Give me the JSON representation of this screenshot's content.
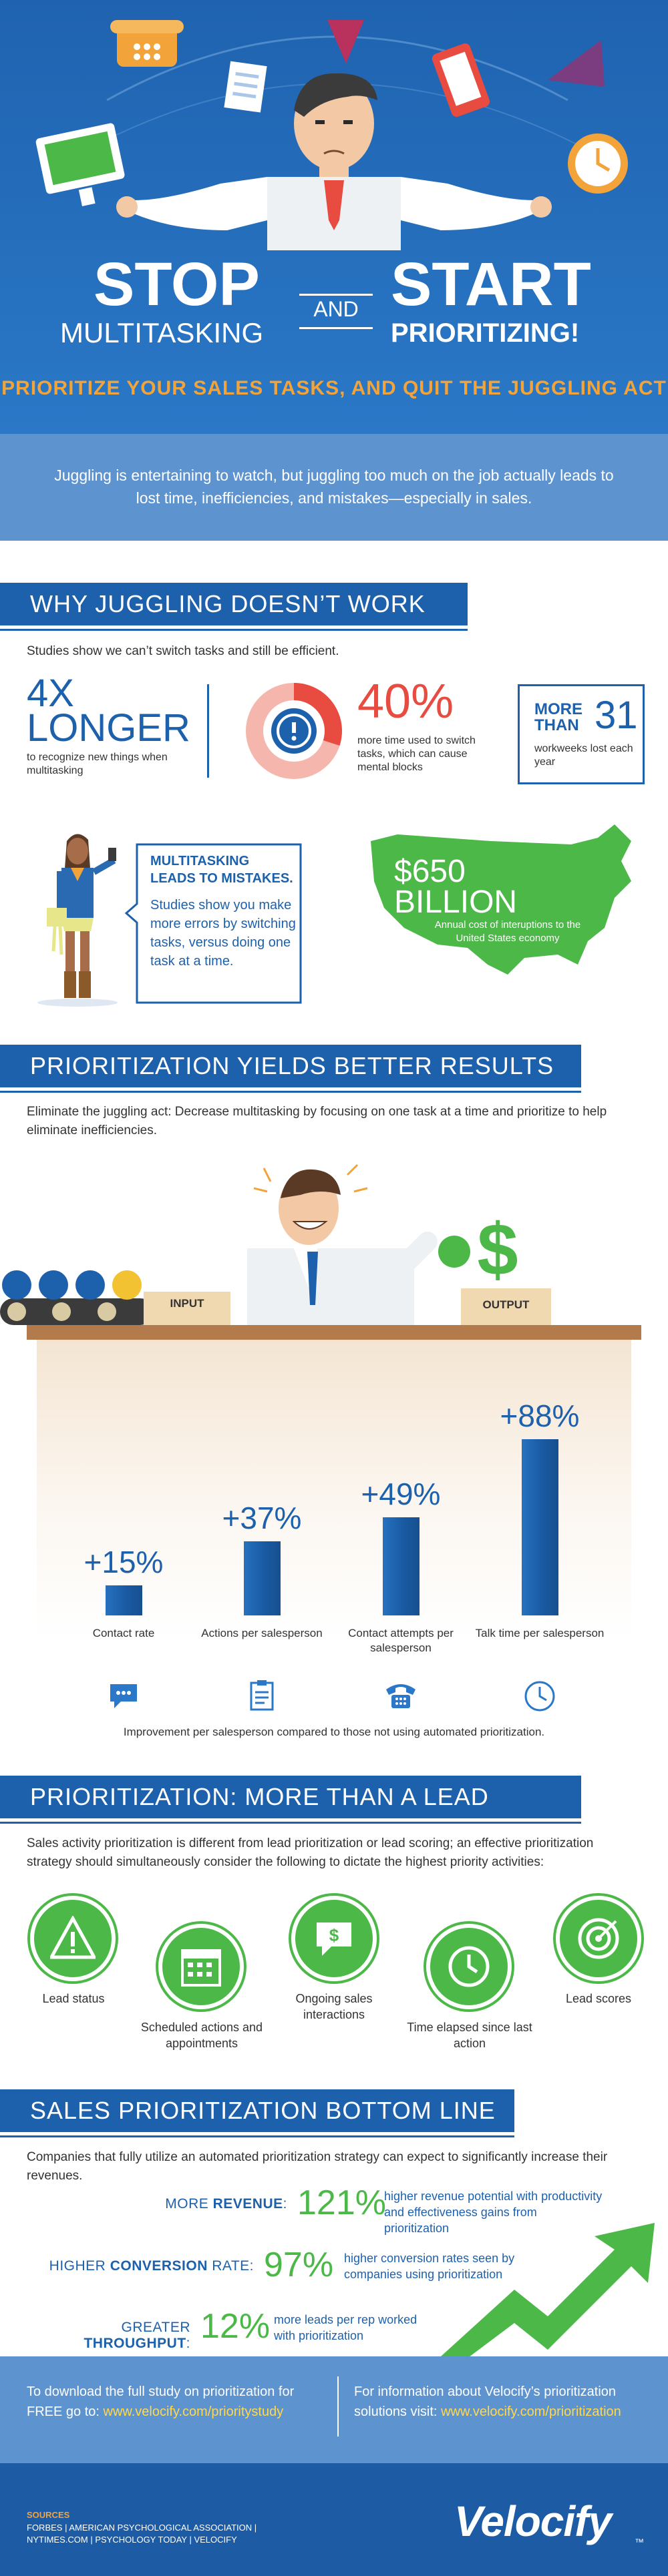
{
  "hero": {
    "stop": "STOP",
    "multitasking": "MULTITASKING",
    "and": "AND",
    "start": "START",
    "prioritizing": "PRIORITIZING!",
    "subtitle": "PRIORITIZE YOUR SALES TASKS, AND QUIT THE JUGGLING ACT",
    "intro": "Juggling is entertaining to watch, but juggling too much on the job actually leads to lost time, inefficiencies, and mistakes—especially in sales."
  },
  "colors": {
    "blue": "#1d61ac",
    "light_blue": "#5d93cf",
    "red": "#e84b3f",
    "green": "#4cb848",
    "orange": "#f2a33a"
  },
  "juggling": {
    "title": "WHY JUGGLING DOESN’T WORK",
    "intro": "Studies show we can’t switch tasks and still be efficient.",
    "stat1_big": "4X",
    "stat1_big2": "LONGER",
    "stat1_desc": "to recognize new things when multitasking",
    "stat2_big": "40%",
    "stat2_desc": "more time used to switch tasks, which can cause mental blocks",
    "stat3_more": "MORE",
    "stat3_than": "THAN",
    "stat3_num": "31",
    "stat3_desc": "workweeks lost each year",
    "mistakes_title": "MULTITASKING LEADS TO MISTAKES.",
    "mistakes_desc": "Studies show you make more errors by switching tasks, versus doing one task at a time.",
    "cost_big": "$650",
    "cost_big2": "BILLION",
    "cost_desc": "Annual cost of interuptions to the United States economy"
  },
  "results": {
    "title": "PRIORITIZATION YIELDS BETTER RESULTS",
    "intro": "Eliminate the juggling act: Decrease multitasking by focusing on one task at a time and prioritize to help eliminate inefficiencies.",
    "input_label": "INPUT",
    "output_label": "OUTPUT",
    "footnote": "Improvement per salesperson compared to those not using automated prioritization."
  },
  "chart_data": {
    "type": "bar",
    "categories": [
      "Contact rate",
      "Actions per salesperson",
      "Contact attempts per salesperson",
      "Talk time per salesperson"
    ],
    "values": [
      15,
      37,
      49,
      88
    ],
    "value_labels": [
      "+15%",
      "+37%",
      "+49%",
      "+88%"
    ],
    "icons": [
      "chat-bubble-icon",
      "clipboard-icon",
      "telephone-icon",
      "clock-icon"
    ],
    "ylim": [
      0,
      100
    ],
    "grid": false
  },
  "leadscore": {
    "title": "PRIORITIZATION: MORE THAN A LEAD SCORE",
    "intro": "Sales activity prioritization is different from lead prioritization or lead scoring; an effective prioritization strategy should simultaneously consider the following to dictate the highest priority activities:",
    "items": [
      {
        "label": "Lead status",
        "icon": "warning-icon"
      },
      {
        "label": "Scheduled actions and appointments",
        "icon": "calendar-icon"
      },
      {
        "label": "Ongoing sales interactions",
        "icon": "money-chat-icon"
      },
      {
        "label": "Time elapsed since last action",
        "icon": "clock-icon"
      },
      {
        "label": "Lead scores",
        "icon": "target-icon"
      }
    ]
  },
  "bottomline": {
    "title": "SALES PRIORITIZATION BOTTOM LINE",
    "intro": "Companies that fully utilize an automated prioritization strategy can expect to significantly increase their revenues.",
    "rows": [
      {
        "prefix": "MORE ",
        "bold": "REVENUE",
        "suffix": ":",
        "pct": "121%",
        "desc": "higher revenue potential with productivity and effectiveness gains from prioritization"
      },
      {
        "prefix": "HIGHER ",
        "bold": "CONVERSION",
        "suffix": " RATE:",
        "pct": "97%",
        "desc": "higher conversion rates seen by companies using prioritization"
      },
      {
        "prefix": "GREATER ",
        "bold": "THROUGHPUT",
        "suffix": ":",
        "pct": "12%",
        "desc": "more leads per rep worked with prioritization"
      }
    ]
  },
  "footer": {
    "download_text": "To download the full study on prioritization for FREE go to: ",
    "download_url": "www.velocify.com/prioritystudy",
    "info_text": "For information about Velocify’s prioritization solutions visit: ",
    "info_url": "www.velocify.com/prioritization",
    "sources_label": "SOURCES",
    "sources_line1": "FORBES | AMERICAN PSYCHOLOGICAL ASSOCIATION |",
    "sources_line2": "NYTIMES.COM | PSYCHOLOGY TODAY | VELOCIFY",
    "logo": "Velocify",
    "tm": "™"
  }
}
